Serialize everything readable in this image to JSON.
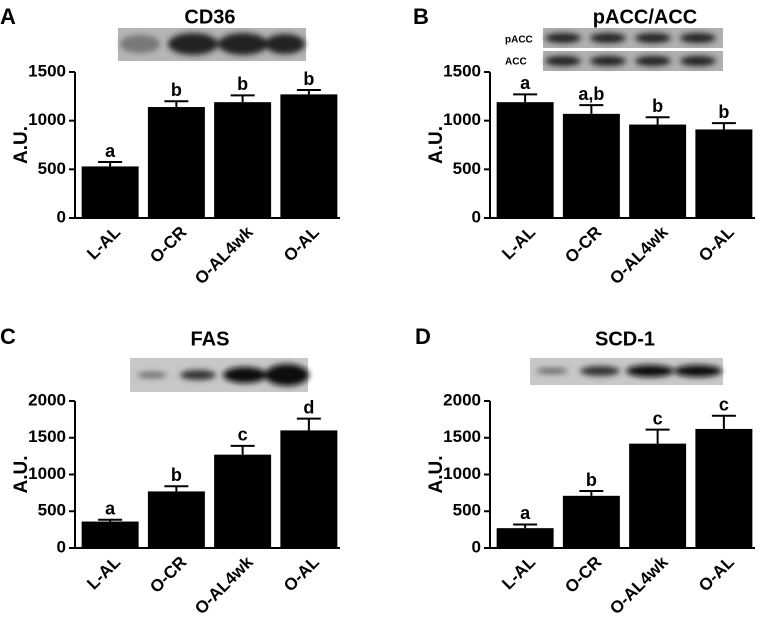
{
  "chart_data": [
    {
      "type": "bar",
      "panel": "A",
      "title": "CD36",
      "ylabel": "A.U.",
      "categories": [
        "L-AL",
        "O-CR",
        "O-AL4wk",
        "O-AL"
      ],
      "values": [
        530,
        1140,
        1190,
        1270
      ],
      "errors": [
        45,
        60,
        70,
        45
      ],
      "annotations": [
        "a",
        "b",
        "b",
        "b"
      ],
      "color": "#000000",
      "ylim": [
        0,
        1500
      ],
      "yticks": [
        0,
        500,
        1000,
        1500
      ]
    },
    {
      "type": "bar",
      "panel": "B",
      "title": "pACC/ACC",
      "ylabel": "A.U.",
      "blot_labels": [
        "pACC",
        "ACC"
      ],
      "categories": [
        "L-AL",
        "O-CR",
        "O-AL4wk",
        "O-AL"
      ],
      "values": [
        1190,
        1070,
        960,
        910
      ],
      "errors": [
        80,
        90,
        75,
        65
      ],
      "annotations": [
        "a",
        "a,b",
        "b",
        "b"
      ],
      "color": "#000000",
      "ylim": [
        0,
        1500
      ],
      "yticks": [
        0,
        500,
        1000,
        1500
      ]
    },
    {
      "type": "bar",
      "panel": "C",
      "title": "FAS",
      "ylabel": "A.U.",
      "categories": [
        "L-AL",
        "O-CR",
        "O-AL4wk",
        "O-AL"
      ],
      "values": [
        360,
        770,
        1270,
        1600
      ],
      "errors": [
        25,
        70,
        120,
        160
      ],
      "annotations": [
        "a",
        "b",
        "c",
        "d"
      ],
      "color": "#000000",
      "ylim": [
        0,
        2000
      ],
      "yticks": [
        0,
        500,
        1000,
        1500,
        2000
      ]
    },
    {
      "type": "bar",
      "panel": "D",
      "title": "SCD-1",
      "ylabel": "A.U.",
      "categories": [
        "L-AL",
        "O-CR",
        "O-AL4wk",
        "O-AL"
      ],
      "values": [
        270,
        710,
        1420,
        1620
      ],
      "errors": [
        50,
        65,
        190,
        180
      ],
      "annotations": [
        "a",
        "b",
        "c",
        "c"
      ],
      "color": "#000000",
      "ylim": [
        0,
        2000
      ],
      "yticks": [
        0,
        500,
        1000,
        1500,
        2000
      ]
    }
  ]
}
